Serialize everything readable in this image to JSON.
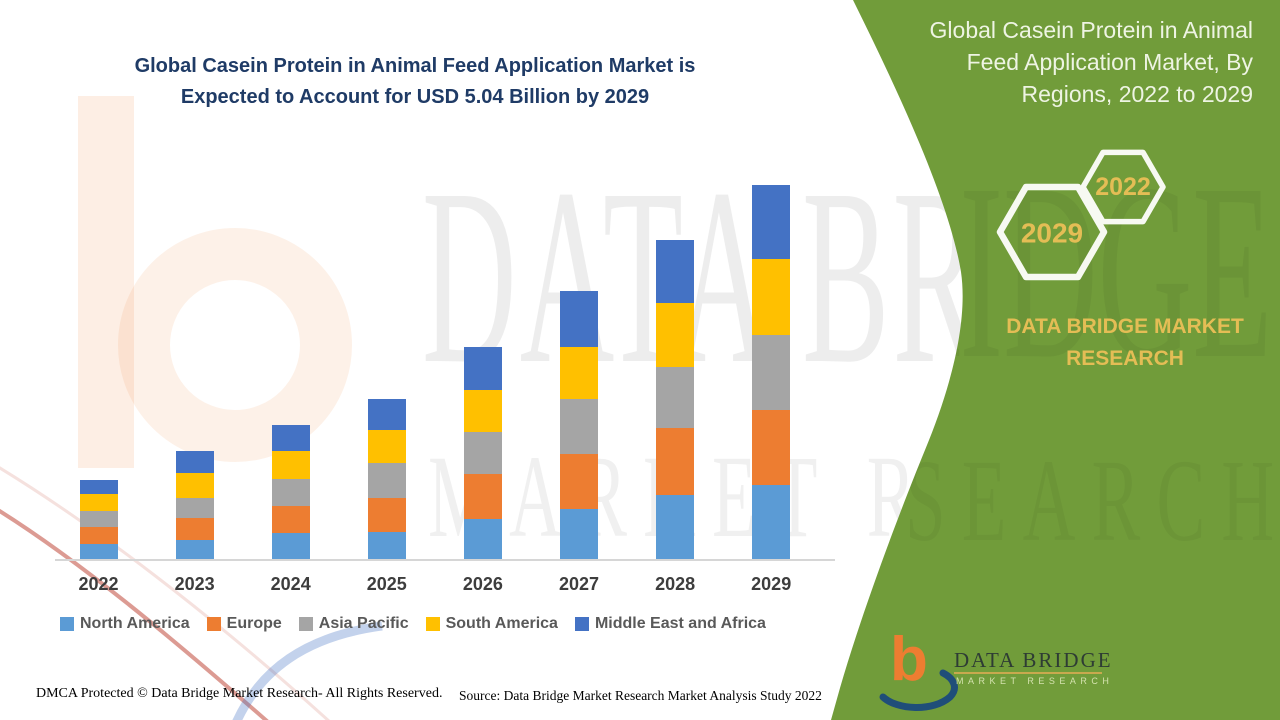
{
  "main": {
    "title_line1": "Global Casein Protein in Animal Feed Application Market is",
    "title_line2": "Expected to Account for USD 5.04 Billion by 2029",
    "title_color": "#1f3b66"
  },
  "chart_data": {
    "type": "bar",
    "stacked": true,
    "unit": "USD Billion",
    "title": "Global Casein Protein in Animal Feed Application Market, By Regions, 2022 to 2029",
    "categories": [
      "2022",
      "2023",
      "2024",
      "2025",
      "2026",
      "2027",
      "2028",
      "2029"
    ],
    "series": [
      {
        "name": "North America",
        "color": "#5B9BD5",
        "values": [
          0.22,
          0.27,
          0.36,
          0.38,
          0.55,
          0.69,
          0.87,
          1.01
        ]
      },
      {
        "name": "Europe",
        "color": "#ED7D31",
        "values": [
          0.23,
          0.29,
          0.37,
          0.46,
          0.61,
          0.74,
          0.9,
          1.01
        ]
      },
      {
        "name": "Asia Pacific",
        "color": "#A5A5A5",
        "values": [
          0.21,
          0.28,
          0.36,
          0.46,
          0.56,
          0.74,
          0.83,
          1.01
        ]
      },
      {
        "name": "South America",
        "color": "#FFC000",
        "values": [
          0.23,
          0.33,
          0.37,
          0.45,
          0.57,
          0.69,
          0.85,
          1.02
        ]
      },
      {
        "name": "Middle East and Africa",
        "color": "#4472C4",
        "values": [
          0.19,
          0.3,
          0.36,
          0.42,
          0.57,
          0.75,
          0.85,
          0.99
        ]
      }
    ],
    "totals_by_year": [
      1.08,
      1.47,
      1.82,
      2.17,
      2.86,
      3.61,
      4.3,
      5.04
    ],
    "ylim": [
      0,
      5.2
    ],
    "value_axis_visible": false,
    "gridlines": false,
    "legend_position": "bottom"
  },
  "green_panel": {
    "bg_color": "#719c3a",
    "title_lines": [
      "Global Casein Protein in Animal",
      "Feed Application Market, By",
      "Regions, 2022 to 2029"
    ],
    "hexagon_large_year": "2029",
    "hexagon_small_year": "2022",
    "gold_color": "#e4bd55",
    "brand_line1": "DATA BRIDGE MARKET",
    "brand_line2": "RESEARCH",
    "logo_text": "DATA BRIDGE",
    "logo_subtext": "MARKET RESEARCH"
  },
  "footer": {
    "left": "DMCA Protected © Data Bridge Market Research- All Rights Reserved.",
    "right": "Source: Data Bridge Market Research Market Analysis Study 2022"
  },
  "watermark": {
    "line1": "DATA BRIDGE",
    "line2": "MARKET RESEARCH",
    "panel_line1": "RIDGE",
    "panel_line2": "SEARCH"
  }
}
